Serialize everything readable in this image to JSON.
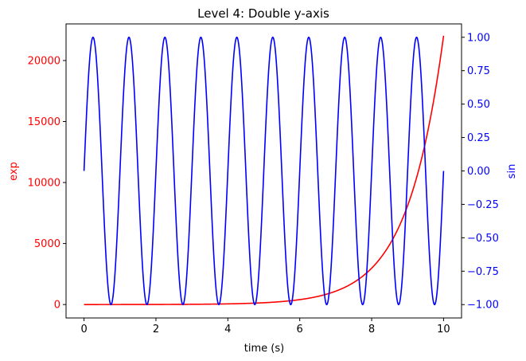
{
  "chart_data": {
    "type": "line",
    "title": "Level 4: Double y-axis",
    "xlabel": "time (s)",
    "xlim": [
      -0.5,
      10.5
    ],
    "xticks": [
      0,
      2,
      4,
      6,
      8,
      10
    ],
    "grid": false,
    "left_axis": {
      "ylabel": "exp",
      "color": "#ff0000",
      "ylim": [
        -1100,
        23000
      ],
      "yticks": [
        0,
        5000,
        10000,
        15000,
        20000
      ]
    },
    "right_axis": {
      "ylabel": "sin",
      "color": "#0000ff",
      "ylim": [
        -1.1,
        1.1
      ],
      "yticks": [
        -1.0,
        -0.75,
        -0.5,
        -0.25,
        0.0,
        0.25,
        0.5,
        0.75,
        1.0
      ]
    },
    "series": [
      {
        "axis": "left",
        "color": "#ff0000",
        "function": "exp(t)",
        "x": [
          0,
          1,
          2,
          3,
          4,
          5,
          6,
          7,
          8,
          9,
          10
        ],
        "values": [
          1,
          2.72,
          7.39,
          20.1,
          54.6,
          148.4,
          403.4,
          1096.6,
          2981,
          8103,
          22026
        ]
      },
      {
        "axis": "right",
        "color": "#0000ff",
        "function": "sin(2*pi*t)",
        "x": [
          0,
          0.25,
          0.5,
          0.75,
          1,
          1.25,
          1.5,
          1.75,
          2
        ],
        "values": [
          0,
          1,
          0,
          -1,
          0,
          1,
          0,
          -1,
          0
        ]
      }
    ]
  }
}
